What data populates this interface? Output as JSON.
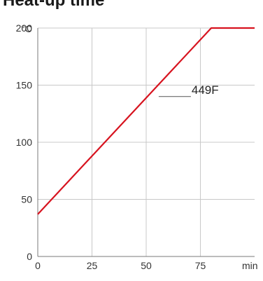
{
  "chart_data": {
    "type": "line",
    "title": "Heat-up time",
    "xlabel": "min",
    "ylabel": "°C",
    "xlim": [
      0,
      100
    ],
    "ylim": [
      0,
      200
    ],
    "x_ticks": [
      0,
      25,
      50,
      75
    ],
    "y_ticks": [
      0,
      50,
      100,
      150,
      200
    ],
    "grid": true,
    "colors": {
      "series": "#d7131f",
      "grid": "#c8c8c8",
      "axis": "#7a7a7a"
    },
    "series": [
      {
        "name": "449F",
        "x": [
          0,
          80,
          100
        ],
        "y": [
          37,
          200,
          200
        ]
      }
    ]
  }
}
